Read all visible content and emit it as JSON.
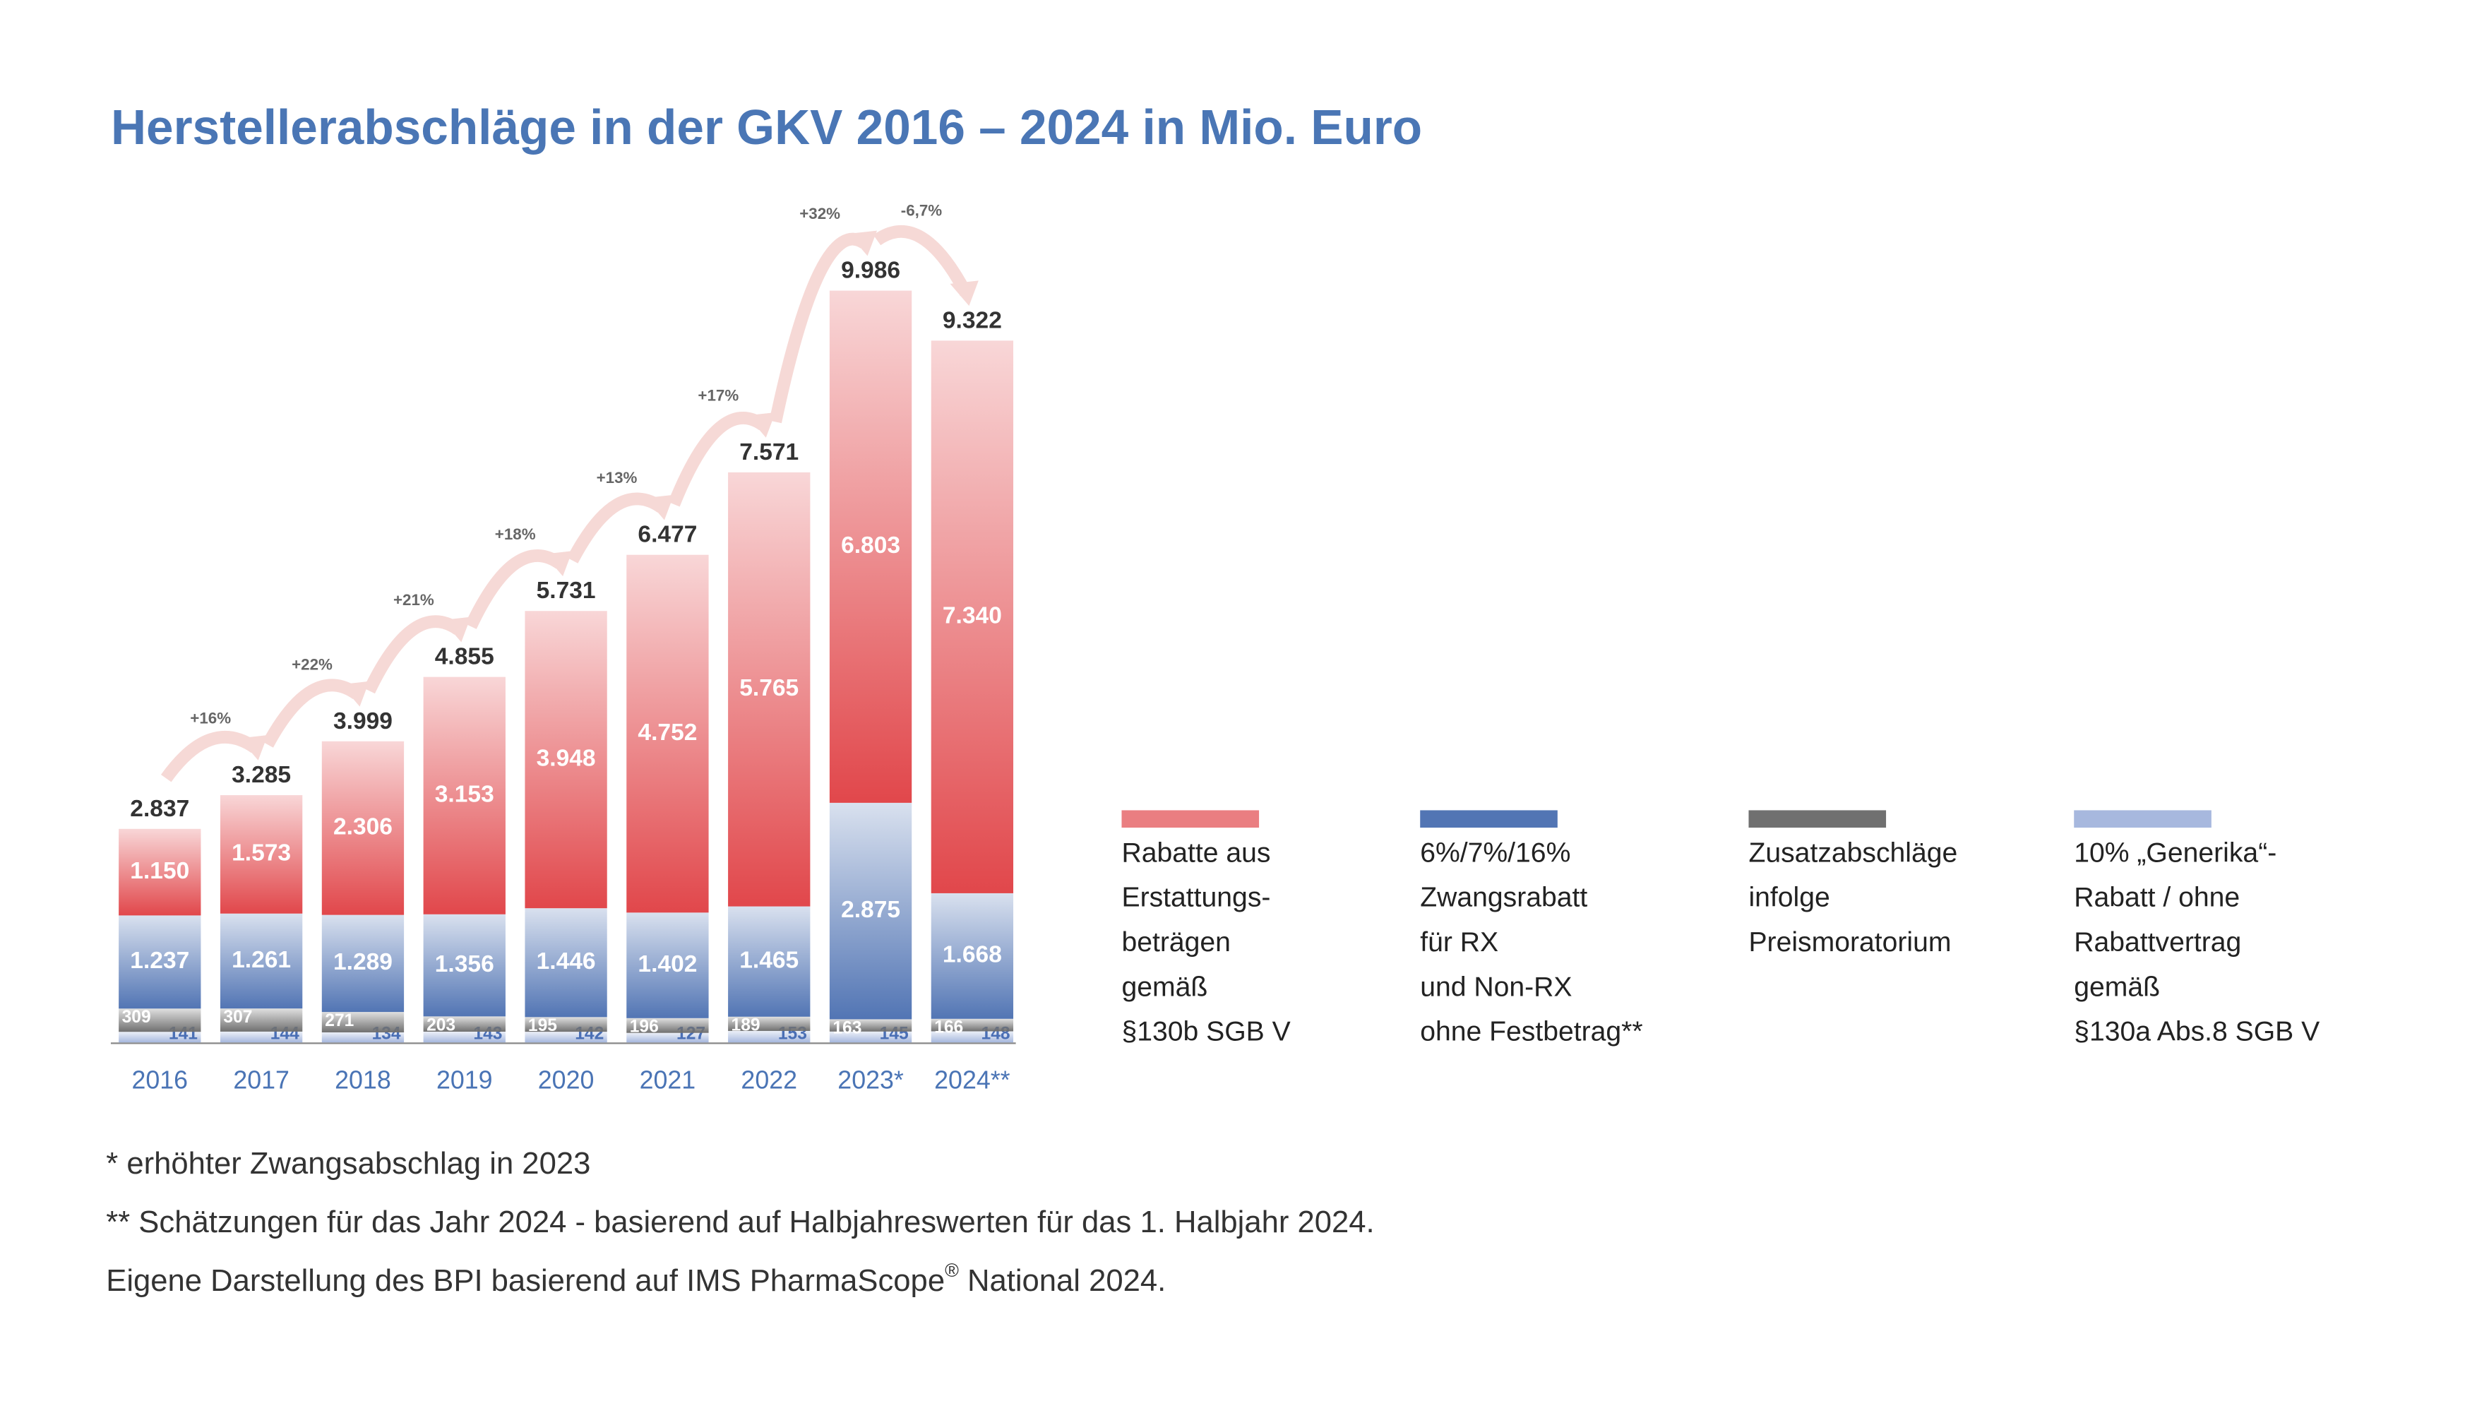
{
  "chart_data": {
    "type": "stacked-bar",
    "title": "Herstellerabschläge in der GKV 2016 – 2024 in Mio. Euro",
    "categories": [
      "2016",
      "2017",
      "2018",
      "2019",
      "2020",
      "2021",
      "2022",
      "2023*",
      "2024**"
    ],
    "series": [
      {
        "name": [
          "10% „Generika“-",
          "Rabatt / ohne",
          "Rabattvertrag",
          "gemäß",
          "§130a Abs.8 SGB V"
        ],
        "color": "#a7b8de",
        "values": [
          141,
          144,
          134,
          143,
          142,
          127,
          153,
          145,
          148
        ],
        "value_labels": [
          "141",
          "144",
          "134",
          "143",
          "142",
          "127",
          "153",
          "145",
          "148"
        ]
      },
      {
        "name": [
          "Zusatzabschläge",
          "infolge",
          "Preismoratorium"
        ],
        "color": "#707070",
        "values": [
          309,
          307,
          271,
          203,
          195,
          196,
          189,
          163,
          166
        ],
        "value_labels": [
          "309",
          "307",
          "271",
          "203",
          "195",
          "196",
          "189",
          "163",
          "166"
        ]
      },
      {
        "name": [
          "6%/7%/16%",
          "Zwangsrabatt",
          "für RX",
          "und Non-RX",
          "ohne Festbetrag**"
        ],
        "color": "#5275b4",
        "values": [
          1237,
          1261,
          1289,
          1356,
          1446,
          1402,
          1465,
          2875,
          1668
        ],
        "value_labels": [
          "1.237",
          "1.261",
          "1.289",
          "1.356",
          "1.446",
          "1.402",
          "1.465",
          "2.875",
          "1.668"
        ]
      },
      {
        "name": [
          "Rabatte aus",
          "Erstattungs-",
          "beträgen",
          "gemäß",
          "§130b SGB V"
        ],
        "color": "#e1474b",
        "values": [
          1150,
          1573,
          2306,
          3153,
          3948,
          4752,
          5765,
          6803,
          7340
        ],
        "value_labels": [
          "1.150",
          "1.573",
          "2.306",
          "3.153",
          "3.948",
          "4.752",
          "5.765",
          "6.803",
          "7.340"
        ]
      }
    ],
    "totals": {
      "values": [
        2837,
        3285,
        3999,
        4855,
        5731,
        6477,
        7571,
        9986,
        9322
      ],
      "value_labels": [
        "2.837",
        "3.285",
        "3.999",
        "4.855",
        "5.731",
        "6.477",
        "7.571",
        "9.986",
        "9.322"
      ]
    },
    "growth": {
      "values": [
        16,
        22,
        21,
        18,
        13,
        17,
        32,
        -6.7
      ],
      "value_labels": [
        "+16%",
        "+22%",
        "+21%",
        "+18%",
        "+13%",
        "+17%",
        "+32%",
        "-6,7%"
      ]
    },
    "footnotes": [
      "*  erhöhter Zwangsabschlag in 2023",
      "** Schätzungen für das Jahr 2024 - basierend auf Halbjahreswerten für das 1. Halbjahr 2024."
    ],
    "source": [
      "Eigene Darstellung des BPI basierend auf IMS  PharmaScope",
      "®",
      " National 2024."
    ]
  }
}
